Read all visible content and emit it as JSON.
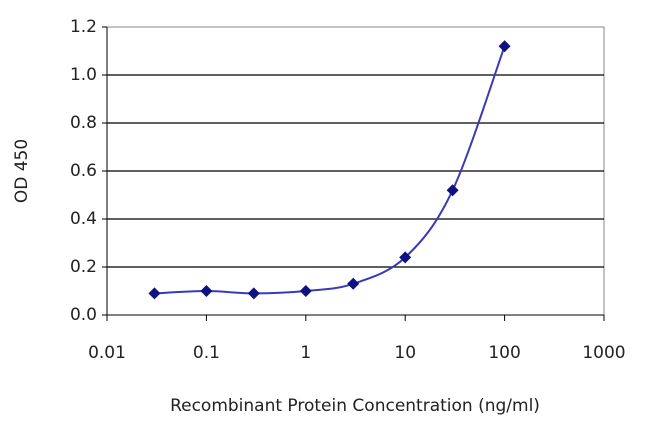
{
  "chart_data": {
    "type": "line",
    "x_label": "Recombinant Protein Concentration (ng/ml)",
    "y_label": "OD 450",
    "x": [
      0.03,
      0.1,
      0.3,
      1,
      3,
      10,
      30,
      100
    ],
    "series": [
      {
        "color": "#3a3ab8",
        "marker_color": "#101080",
        "values": [
          0.09,
          0.1,
          0.09,
          0.1,
          0.13,
          0.24,
          0.52,
          1.12
        ]
      }
    ],
    "xscale": "log",
    "xlim": [
      0.01,
      1000
    ],
    "xticks": [
      0.01,
      0.1,
      1,
      10,
      100,
      1000
    ],
    "ylim": [
      0,
      1.2
    ],
    "yticks": [
      {
        "value": 0,
        "label": "0.0"
      },
      0.2,
      0.4,
      0.6,
      0.8,
      {
        "value": 1,
        "label": "1.0"
      },
      1.2
    ],
    "grid": true,
    "smooth": true
  }
}
